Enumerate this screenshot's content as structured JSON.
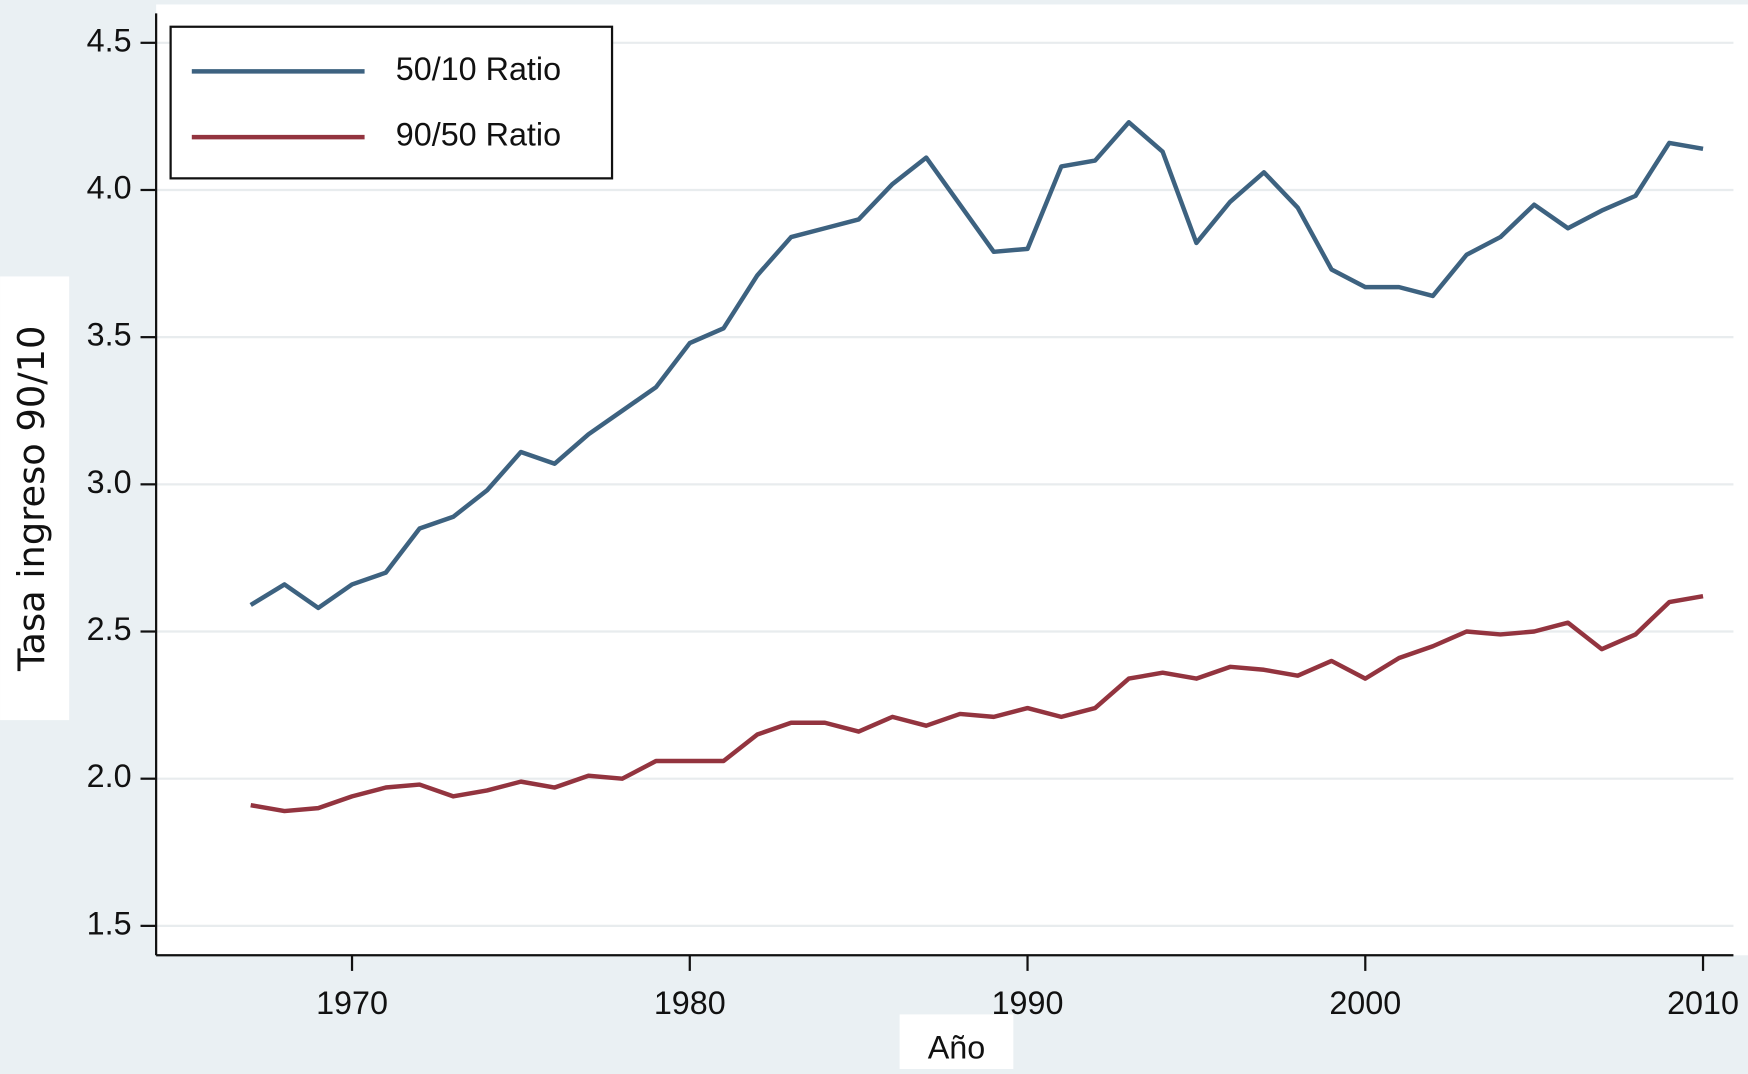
{
  "chart_data": {
    "type": "line",
    "x_label": "Año",
    "y_label": "Tasa ingreso 90/10",
    "x": [
      1967,
      1968,
      1969,
      1970,
      1971,
      1972,
      1973,
      1974,
      1975,
      1976,
      1977,
      1978,
      1979,
      1980,
      1981,
      1982,
      1983,
      1984,
      1985,
      1986,
      1987,
      1988,
      1989,
      1990,
      1991,
      1992,
      1993,
      1994,
      1995,
      1996,
      1997,
      1998,
      1999,
      2000,
      2001,
      2002,
      2003,
      2004,
      2005,
      2006,
      2007,
      2008,
      2009,
      2010
    ],
    "series": [
      {
        "name": "50/10 Ratio",
        "color": "#3d6280",
        "values": [
          2.59,
          2.66,
          2.58,
          2.66,
          2.7,
          2.85,
          2.89,
          2.98,
          3.11,
          3.07,
          3.17,
          3.25,
          3.33,
          3.48,
          3.53,
          3.71,
          3.84,
          3.87,
          3.9,
          4.02,
          4.11,
          3.95,
          3.79,
          3.8,
          4.08,
          4.1,
          4.23,
          4.13,
          3.82,
          3.96,
          4.06,
          3.94,
          3.73,
          3.67,
          3.67,
          3.64,
          3.78,
          3.84,
          3.95,
          3.87,
          3.93,
          3.98,
          4.16,
          4.14
        ]
      },
      {
        "name": "90/50 Ratio",
        "color": "#93343f",
        "values": [
          1.91,
          1.89,
          1.9,
          1.94,
          1.97,
          1.98,
          1.94,
          1.96,
          1.99,
          1.97,
          2.01,
          2.0,
          2.06,
          2.06,
          2.06,
          2.15,
          2.19,
          2.19,
          2.16,
          2.21,
          2.18,
          2.22,
          2.21,
          2.24,
          2.21,
          2.24,
          2.34,
          2.36,
          2.34,
          2.38,
          2.37,
          2.35,
          2.4,
          2.34,
          2.41,
          2.45,
          2.5,
          2.49,
          2.5,
          2.53,
          2.44,
          2.49,
          2.6,
          2.62
        ]
      }
    ],
    "xlim": [
      1964.2,
      2010.9
    ],
    "xticks": [
      1970,
      1980,
      1990,
      2000,
      2010
    ],
    "ylim": [
      1.4,
      4.6
    ],
    "yticks": [
      1.5,
      {
        "value": 2,
        "label": "2.0"
      },
      2.5,
      {
        "value": 3,
        "label": "3.0"
      },
      3.5,
      {
        "value": 4,
        "label": "4.0"
      },
      4.5
    ],
    "grid": true,
    "legend": "top-left"
  }
}
